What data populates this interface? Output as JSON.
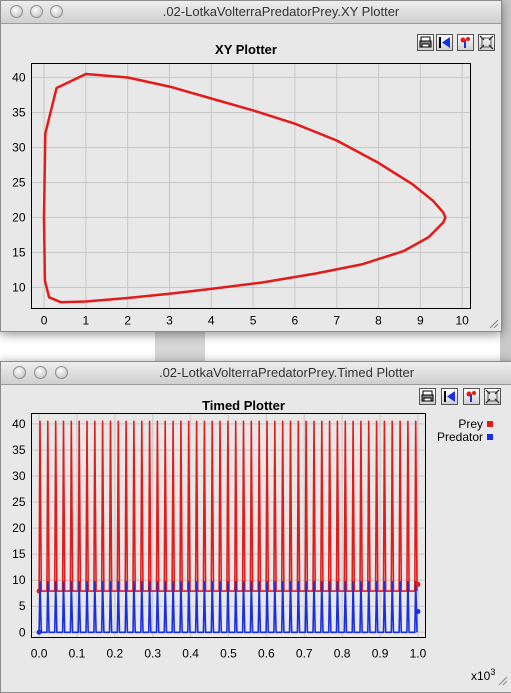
{
  "xy_window": {
    "title": ".02-LotkaVolterraPredatorPrey.XY Plotter",
    "plot_title": "XY Plotter",
    "toolbar": [
      "print-icon",
      "reset-axes-icon",
      "sample-plot-icon",
      "fill-icon"
    ]
  },
  "timed_window": {
    "title": ".02-LotkaVolterraPredatorPrey.Timed Plotter",
    "plot_title": "Timed Plotter",
    "toolbar": [
      "print-icon",
      "reset-axes-icon",
      "sample-plot-icon",
      "fill-icon"
    ],
    "x_exponent_base": "x10",
    "x_exponent_power": "3"
  },
  "colors": {
    "prey": "#e21b1b",
    "predator": "#1a2fe0",
    "grid": "#c8c8c8"
  },
  "chart_data": [
    {
      "type": "line",
      "title": "XY Plotter",
      "xlim": [
        -0.3,
        10.2
      ],
      "ylim": [
        7,
        42
      ],
      "xticks": [
        0,
        1,
        2,
        3,
        4,
        5,
        6,
        7,
        8,
        9,
        10
      ],
      "yticks": [
        10,
        15,
        20,
        25,
        30,
        35,
        40
      ],
      "grid": true,
      "series": [
        {
          "x": [
            0,
            0.03,
            0.3,
            1.0,
            2.0,
            3.0,
            4.0,
            5.0,
            6.0,
            7.0,
            8.0,
            8.8,
            9.3,
            9.55,
            9.6,
            9.55,
            9.2,
            8.6,
            7.6,
            6.5,
            5.2,
            4.0,
            3.0,
            2.0,
            1.0,
            0.4,
            0.12,
            0.02,
            0.0
          ],
          "y": [
            20,
            32,
            38.5,
            40.5,
            40.0,
            38.7,
            37.0,
            35.3,
            33.4,
            31.0,
            27.8,
            24.8,
            22.4,
            20.7,
            20.0,
            19.3,
            17.2,
            15.2,
            13.3,
            12.0,
            10.7,
            9.8,
            9.1,
            8.5,
            8.0,
            7.9,
            8.6,
            11.0,
            20
          ]
        }
      ]
    },
    {
      "type": "line",
      "title": "Timed Plotter",
      "xlim": [
        -0.02,
        1.02
      ],
      "ylim": [
        -1,
        42
      ],
      "xticks": [
        "0.0",
        "0.1",
        "0.2",
        "0.3",
        "0.4",
        "0.5",
        "0.6",
        "0.7",
        "0.8",
        "0.9",
        "1.0"
      ],
      "yticks": [
        0,
        5,
        10,
        15,
        20,
        25,
        30,
        35,
        40
      ],
      "grid": true,
      "legend_position": "top-right",
      "series": [
        {
          "name": "Prey",
          "period": 0.02066,
          "peak": 40.5,
          "trough": 7.9
        },
        {
          "name": "Predator",
          "period": 0.02066,
          "peak": 9.7,
          "trough": 0.0
        }
      ]
    }
  ]
}
